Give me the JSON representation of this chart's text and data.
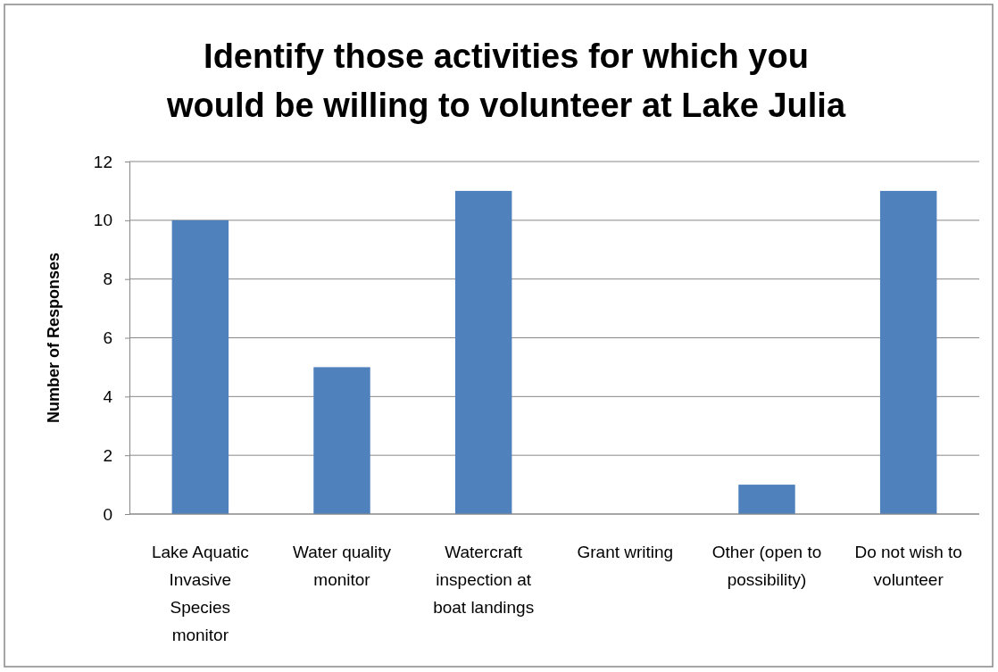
{
  "chart_data": {
    "type": "bar",
    "title": "Identify those activities for which you would be willing to volunteer at Lake Julia",
    "ylabel": "Number of Responses",
    "categories": [
      "Lake Aquatic Invasive Species monitor",
      "Water quality monitor",
      "Watercraft inspection at boat landings",
      "Grant writing",
      "Other (open to possibility)",
      "Do not wish to volunteer"
    ],
    "values": [
      10,
      5,
      11,
      0,
      1,
      11
    ],
    "color": "#4f81bd",
    "ylim": [
      0,
      12
    ],
    "yticks": [
      0,
      2,
      4,
      6,
      8,
      10,
      12
    ],
    "grid": "y"
  }
}
